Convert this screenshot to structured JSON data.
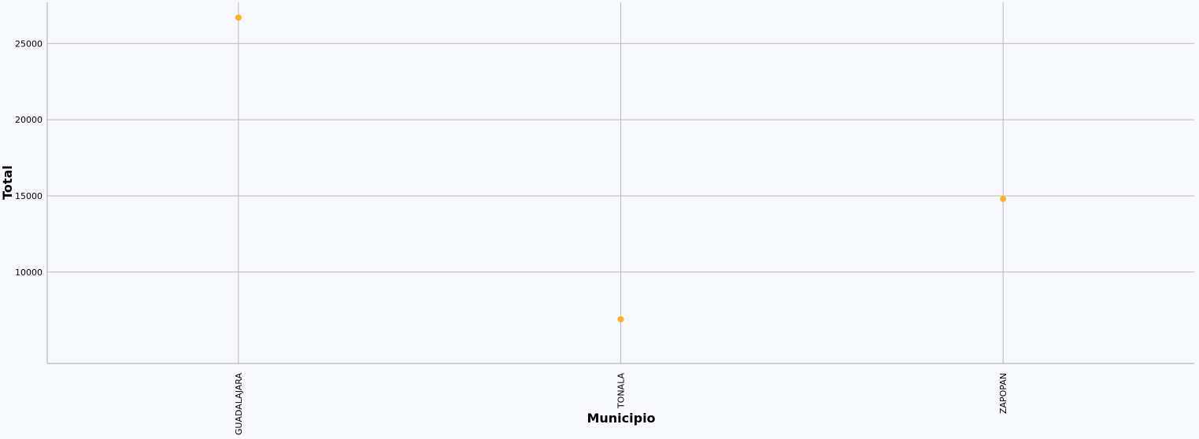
{
  "chart_data": {
    "type": "scatter",
    "categories": [
      "GUADALAJARA",
      "TONALA",
      "ZAPOPAN"
    ],
    "series": [
      {
        "values": [
          26700,
          6900,
          14800
        ],
        "color": "#f9b428"
      }
    ],
    "xlabel": "Municipio",
    "ylabel": "Total",
    "ylim": [
      4000,
      27700
    ],
    "yticks": [
      10000,
      15000,
      20000,
      25000
    ],
    "grid": true,
    "colors": {
      "background": "#f8f9fe",
      "grid": "#bbbbbb",
      "point": "#f9b428"
    }
  }
}
